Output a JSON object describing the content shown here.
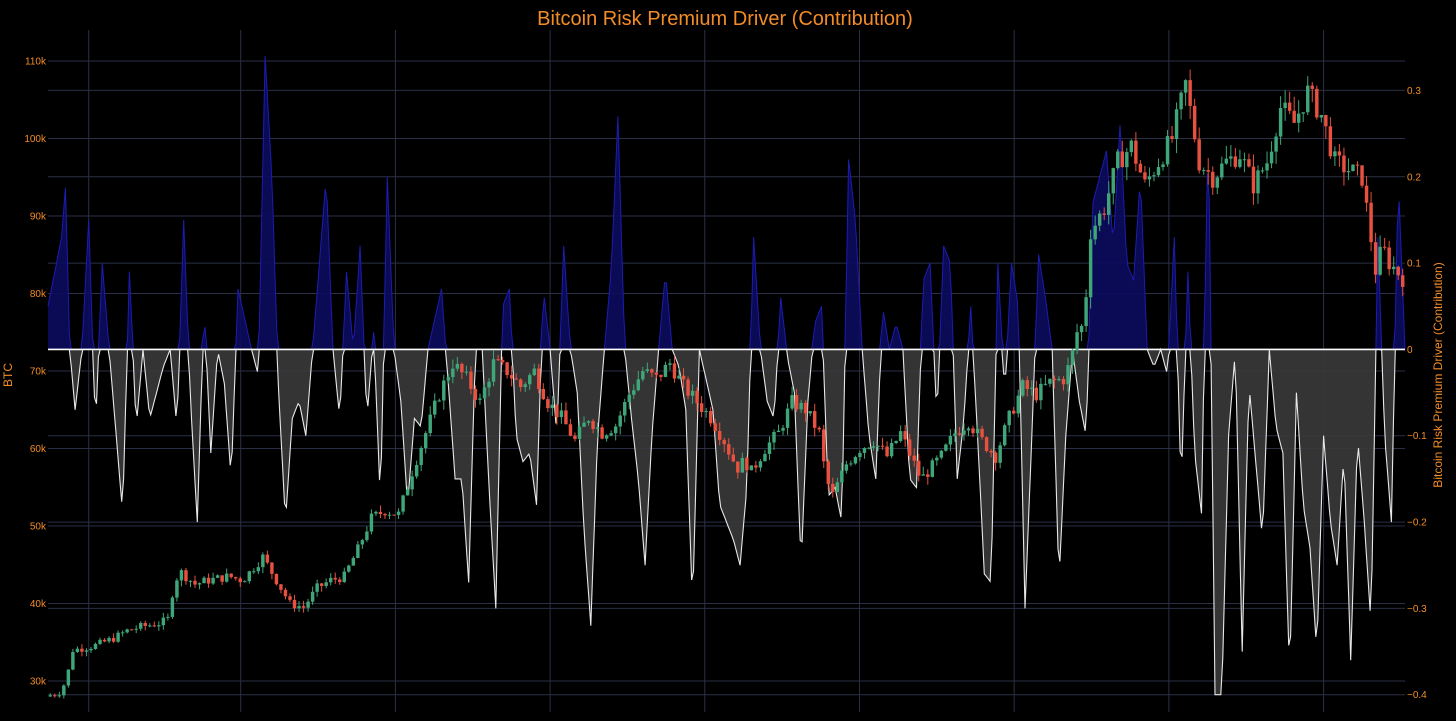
{
  "chart_data": {
    "type": "candlestick-with-area",
    "title": "Bitcoin Risk Premium Driver (Contribution)",
    "grid": true,
    "colors": {
      "background": "#000000",
      "grid": "#2a2f45",
      "text": "#f28c28",
      "candle_up": "#3fa67a",
      "candle_down": "#e8503f",
      "positive_fill": "#0b0b5e",
      "positive_line": "#1c1cb0",
      "negative_fill": "#3a3a3a",
      "negative_line": "#e8e8e8"
    },
    "y_left": {
      "label": "BTC",
      "range": [
        26000,
        114000
      ],
      "ticks": [
        30000,
        40000,
        50000,
        60000,
        70000,
        80000,
        90000,
        100000,
        110000
      ],
      "tick_labels": [
        "30k",
        "40k",
        "50k",
        "60k",
        "70k",
        "80k",
        "90k",
        "100k",
        "110k"
      ]
    },
    "y_right": {
      "label": "Bitcoin Risk Premium Driver (Contribution)",
      "range": [
        -0.42,
        0.37
      ],
      "ticks": [
        -0.4,
        -0.3,
        -0.2,
        -0.1,
        0,
        0.1,
        0.2,
        0.3
      ],
      "tick_labels": [
        "−0.4",
        "−0.3",
        "−0.2",
        "−0.1",
        "0",
        "0.1",
        "0.2",
        "0.3"
      ]
    },
    "x_gridlines": [
      0.03,
      0.142,
      0.256,
      0.37,
      0.484,
      0.598,
      0.712,
      0.826,
      0.94
    ],
    "btc_price_path": [
      [
        0.0,
        28000
      ],
      [
        0.01,
        28500
      ],
      [
        0.015,
        30000
      ],
      [
        0.02,
        34000
      ],
      [
        0.035,
        34500
      ],
      [
        0.05,
        35500
      ],
      [
        0.06,
        36500
      ],
      [
        0.07,
        37000
      ],
      [
        0.085,
        37500
      ],
      [
        0.09,
        38000
      ],
      [
        0.095,
        43000
      ],
      [
        0.1,
        44000
      ],
      [
        0.11,
        42500
      ],
      [
        0.12,
        43000
      ],
      [
        0.135,
        43500
      ],
      [
        0.145,
        43000
      ],
      [
        0.16,
        46000
      ],
      [
        0.17,
        43000
      ],
      [
        0.18,
        40000
      ],
      [
        0.19,
        39500
      ],
      [
        0.2,
        42000
      ],
      [
        0.21,
        43000
      ],
      [
        0.22,
        43500
      ],
      [
        0.23,
        47000
      ],
      [
        0.24,
        51000
      ],
      [
        0.25,
        52000
      ],
      [
        0.26,
        51500
      ],
      [
        0.27,
        57000
      ],
      [
        0.28,
        62000
      ],
      [
        0.29,
        67000
      ],
      [
        0.3,
        71000
      ],
      [
        0.31,
        69000
      ],
      [
        0.32,
        66000
      ],
      [
        0.33,
        71000
      ],
      [
        0.34,
        70000
      ],
      [
        0.35,
        68000
      ],
      [
        0.36,
        70000
      ],
      [
        0.37,
        66000
      ],
      [
        0.38,
        64000
      ],
      [
        0.39,
        61000
      ],
      [
        0.4,
        64000
      ],
      [
        0.41,
        62000
      ],
      [
        0.42,
        63000
      ],
      [
        0.43,
        67000
      ],
      [
        0.44,
        70000
      ],
      [
        0.45,
        69000
      ],
      [
        0.46,
        71000
      ],
      [
        0.47,
        68000
      ],
      [
        0.48,
        66000
      ],
      [
        0.49,
        64000
      ],
      [
        0.5,
        61000
      ],
      [
        0.505,
        59000
      ],
      [
        0.51,
        57500
      ],
      [
        0.515,
        58500
      ],
      [
        0.52,
        57000
      ],
      [
        0.53,
        60000
      ],
      [
        0.54,
        62000
      ],
      [
        0.55,
        66000
      ],
      [
        0.56,
        65000
      ],
      [
        0.57,
        62000
      ],
      [
        0.575,
        56000
      ],
      [
        0.58,
        54000
      ],
      [
        0.59,
        58000
      ],
      [
        0.6,
        60000
      ],
      [
        0.61,
        61000
      ],
      [
        0.62,
        59000
      ],
      [
        0.63,
        62000
      ],
      [
        0.64,
        58000
      ],
      [
        0.645,
        56000
      ],
      [
        0.65,
        57000
      ],
      [
        0.66,
        59000
      ],
      [
        0.67,
        62000
      ],
      [
        0.68,
        63500
      ],
      [
        0.69,
        61000
      ],
      [
        0.7,
        59000
      ],
      [
        0.71,
        64000
      ],
      [
        0.72,
        68000
      ],
      [
        0.73,
        67000
      ],
      [
        0.74,
        68500
      ],
      [
        0.75,
        69000
      ],
      [
        0.755,
        71000
      ],
      [
        0.76,
        75000
      ],
      [
        0.765,
        76000
      ],
      [
        0.77,
        88000
      ],
      [
        0.78,
        91000
      ],
      [
        0.79,
        97000
      ],
      [
        0.8,
        99000
      ],
      [
        0.81,
        94000
      ],
      [
        0.82,
        97000
      ],
      [
        0.83,
        100000
      ],
      [
        0.84,
        107000
      ],
      [
        0.85,
        97000
      ],
      [
        0.86,
        95000
      ],
      [
        0.87,
        97000
      ],
      [
        0.88,
        98000
      ],
      [
        0.89,
        94000
      ],
      [
        0.9,
        97000
      ],
      [
        0.91,
        104000
      ],
      [
        0.92,
        102000
      ],
      [
        0.93,
        106000
      ],
      [
        0.94,
        103000
      ],
      [
        0.95,
        97000
      ],
      [
        0.96,
        96000
      ],
      [
        0.97,
        95000
      ],
      [
        0.98,
        83000
      ],
      [
        0.985,
        86000
      ],
      [
        0.99,
        84000
      ],
      [
        1.0,
        82000
      ]
    ],
    "risk_premium_path": [
      [
        0.0,
        0.05
      ],
      [
        0.01,
        0.13
      ],
      [
        0.013,
        0.19
      ],
      [
        0.016,
        0.0
      ],
      [
        0.02,
        -0.07
      ],
      [
        0.025,
        0.0
      ],
      [
        0.03,
        0.15
      ],
      [
        0.035,
        -0.09
      ],
      [
        0.04,
        0.1
      ],
      [
        0.045,
        0.0
      ],
      [
        0.055,
        -0.19
      ],
      [
        0.06,
        0.09
      ],
      [
        0.065,
        -0.09
      ],
      [
        0.07,
        0.0
      ],
      [
        0.075,
        -0.08
      ],
      [
        0.085,
        -0.02
      ],
      [
        0.09,
        0.0
      ],
      [
        0.095,
        -0.09
      ],
      [
        0.1,
        0.15
      ],
      [
        0.105,
        -0.06
      ],
      [
        0.11,
        -0.2
      ],
      [
        0.115,
        0.05
      ],
      [
        0.12,
        -0.12
      ],
      [
        0.125,
        0.0
      ],
      [
        0.13,
        -0.04
      ],
      [
        0.135,
        -0.15
      ],
      [
        0.14,
        0.07
      ],
      [
        0.15,
        0.0
      ],
      [
        0.155,
        -0.03
      ],
      [
        0.16,
        0.34
      ],
      [
        0.165,
        0.2
      ],
      [
        0.17,
        -0.05
      ],
      [
        0.175,
        -0.2
      ],
      [
        0.18,
        -0.08
      ],
      [
        0.185,
        -0.06
      ],
      [
        0.19,
        -0.1
      ],
      [
        0.2,
        0.1
      ],
      [
        0.205,
        0.2
      ],
      [
        0.21,
        0.0
      ],
      [
        0.215,
        -0.08
      ],
      [
        0.22,
        0.09
      ],
      [
        0.225,
        0.0
      ],
      [
        0.23,
        0.12
      ],
      [
        0.235,
        -0.08
      ],
      [
        0.24,
        0.02
      ],
      [
        0.245,
        -0.18
      ],
      [
        0.25,
        0.2
      ],
      [
        0.255,
        0.0
      ],
      [
        0.26,
        -0.06
      ],
      [
        0.265,
        -0.18
      ],
      [
        0.27,
        -0.08
      ],
      [
        0.275,
        -0.09
      ],
      [
        0.28,
        0.0
      ],
      [
        0.29,
        0.07
      ],
      [
        0.295,
        -0.04
      ],
      [
        0.3,
        -0.15
      ],
      [
        0.305,
        -0.15
      ],
      [
        0.31,
        -0.27
      ],
      [
        0.315,
        0.0
      ],
      [
        0.32,
        0.0
      ],
      [
        0.325,
        -0.16
      ],
      [
        0.33,
        -0.3
      ],
      [
        0.335,
        0.05
      ],
      [
        0.34,
        0.07
      ],
      [
        0.345,
        -0.1
      ],
      [
        0.35,
        -0.13
      ],
      [
        0.355,
        -0.12
      ],
      [
        0.36,
        -0.18
      ],
      [
        0.365,
        0.07
      ],
      [
        0.37,
        0.0
      ],
      [
        0.375,
        -0.1
      ],
      [
        0.38,
        0.12
      ],
      [
        0.385,
        0.0
      ],
      [
        0.39,
        -0.05
      ],
      [
        0.395,
        -0.21
      ],
      [
        0.4,
        -0.32
      ],
      [
        0.405,
        -0.1
      ],
      [
        0.41,
        0.0
      ],
      [
        0.415,
        0.09
      ],
      [
        0.42,
        0.27
      ],
      [
        0.425,
        0.0
      ],
      [
        0.43,
        -0.08
      ],
      [
        0.435,
        -0.15
      ],
      [
        0.44,
        -0.25
      ],
      [
        0.445,
        -0.1
      ],
      [
        0.45,
        0.0
      ],
      [
        0.455,
        0.09
      ],
      [
        0.46,
        0.0
      ],
      [
        0.465,
        -0.02
      ],
      [
        0.47,
        -0.07
      ],
      [
        0.475,
        -0.3
      ],
      [
        0.48,
        0.0
      ],
      [
        0.49,
        -0.07
      ],
      [
        0.495,
        -0.18
      ],
      [
        0.5,
        -0.2
      ],
      [
        0.505,
        -0.22
      ],
      [
        0.51,
        -0.25
      ],
      [
        0.515,
        -0.16
      ],
      [
        0.52,
        0.13
      ],
      [
        0.525,
        0.0
      ],
      [
        0.53,
        -0.06
      ],
      [
        0.535,
        -0.08
      ],
      [
        0.54,
        0.06
      ],
      [
        0.545,
        -0.01
      ],
      [
        0.55,
        -0.05
      ],
      [
        0.555,
        -0.25
      ],
      [
        0.56,
        -0.06
      ],
      [
        0.565,
        0.03
      ],
      [
        0.57,
        0.05
      ],
      [
        0.575,
        -0.17
      ],
      [
        0.58,
        -0.16
      ],
      [
        0.585,
        -0.2
      ],
      [
        0.59,
        0.22
      ],
      [
        0.595,
        0.15
      ],
      [
        0.6,
        0.0
      ],
      [
        0.605,
        -0.1
      ],
      [
        0.61,
        -0.15
      ],
      [
        0.615,
        0.05
      ],
      [
        0.62,
        0.0
      ],
      [
        0.625,
        0.03
      ],
      [
        0.63,
        0.0
      ],
      [
        0.635,
        -0.15
      ],
      [
        0.64,
        -0.16
      ],
      [
        0.645,
        0.08
      ],
      [
        0.65,
        0.1
      ],
      [
        0.655,
        -0.08
      ],
      [
        0.66,
        0.12
      ],
      [
        0.665,
        0.1
      ],
      [
        0.67,
        -0.15
      ],
      [
        0.675,
        -0.08
      ],
      [
        0.68,
        0.05
      ],
      [
        0.685,
        -0.1
      ],
      [
        0.69,
        -0.26
      ],
      [
        0.695,
        -0.27
      ],
      [
        0.7,
        0.1
      ],
      [
        0.705,
        -0.05
      ],
      [
        0.71,
        0.1
      ],
      [
        0.715,
        0.05
      ],
      [
        0.72,
        -0.3
      ],
      [
        0.725,
        -0.1
      ],
      [
        0.73,
        0.11
      ],
      [
        0.735,
        0.06
      ],
      [
        0.74,
        0.0
      ],
      [
        0.745,
        -0.27
      ],
      [
        0.75,
        -0.1
      ],
      [
        0.755,
        0.0
      ],
      [
        0.76,
        -0.06
      ],
      [
        0.765,
        -0.1
      ],
      [
        0.77,
        0.17
      ],
      [
        0.775,
        0.2
      ],
      [
        0.78,
        0.23
      ],
      [
        0.785,
        0.12
      ],
      [
        0.79,
        0.26
      ],
      [
        0.795,
        0.1
      ],
      [
        0.8,
        0.08
      ],
      [
        0.805,
        0.2
      ],
      [
        0.81,
        0.0
      ],
      [
        0.815,
        -0.02
      ],
      [
        0.82,
        0.0
      ],
      [
        0.825,
        -0.03
      ],
      [
        0.83,
        0.13
      ],
      [
        0.835,
        -0.16
      ],
      [
        0.84,
        0.09
      ],
      [
        0.845,
        -0.12
      ],
      [
        0.85,
        -0.19
      ],
      [
        0.855,
        0.27
      ],
      [
        0.86,
        -0.4
      ],
      [
        0.865,
        -0.4
      ],
      [
        0.87,
        -0.1
      ],
      [
        0.875,
        0.0
      ],
      [
        0.88,
        -0.35
      ],
      [
        0.885,
        -0.04
      ],
      [
        0.89,
        -0.13
      ],
      [
        0.895,
        -0.22
      ],
      [
        0.9,
        0.0
      ],
      [
        0.905,
        -0.09
      ],
      [
        0.91,
        -0.12
      ],
      [
        0.915,
        -0.38
      ],
      [
        0.92,
        -0.05
      ],
      [
        0.925,
        -0.18
      ],
      [
        0.93,
        -0.23
      ],
      [
        0.935,
        -0.35
      ],
      [
        0.94,
        -0.1
      ],
      [
        0.945,
        -0.2
      ],
      [
        0.95,
        -0.25
      ],
      [
        0.955,
        -0.12
      ],
      [
        0.96,
        -0.36
      ],
      [
        0.965,
        -0.1
      ],
      [
        0.97,
        -0.2
      ],
      [
        0.975,
        -0.32
      ],
      [
        0.98,
        0.13
      ],
      [
        0.985,
        -0.1
      ],
      [
        0.99,
        -0.2
      ],
      [
        0.995,
        0.2
      ],
      [
        1.0,
        0.0
      ]
    ]
  }
}
